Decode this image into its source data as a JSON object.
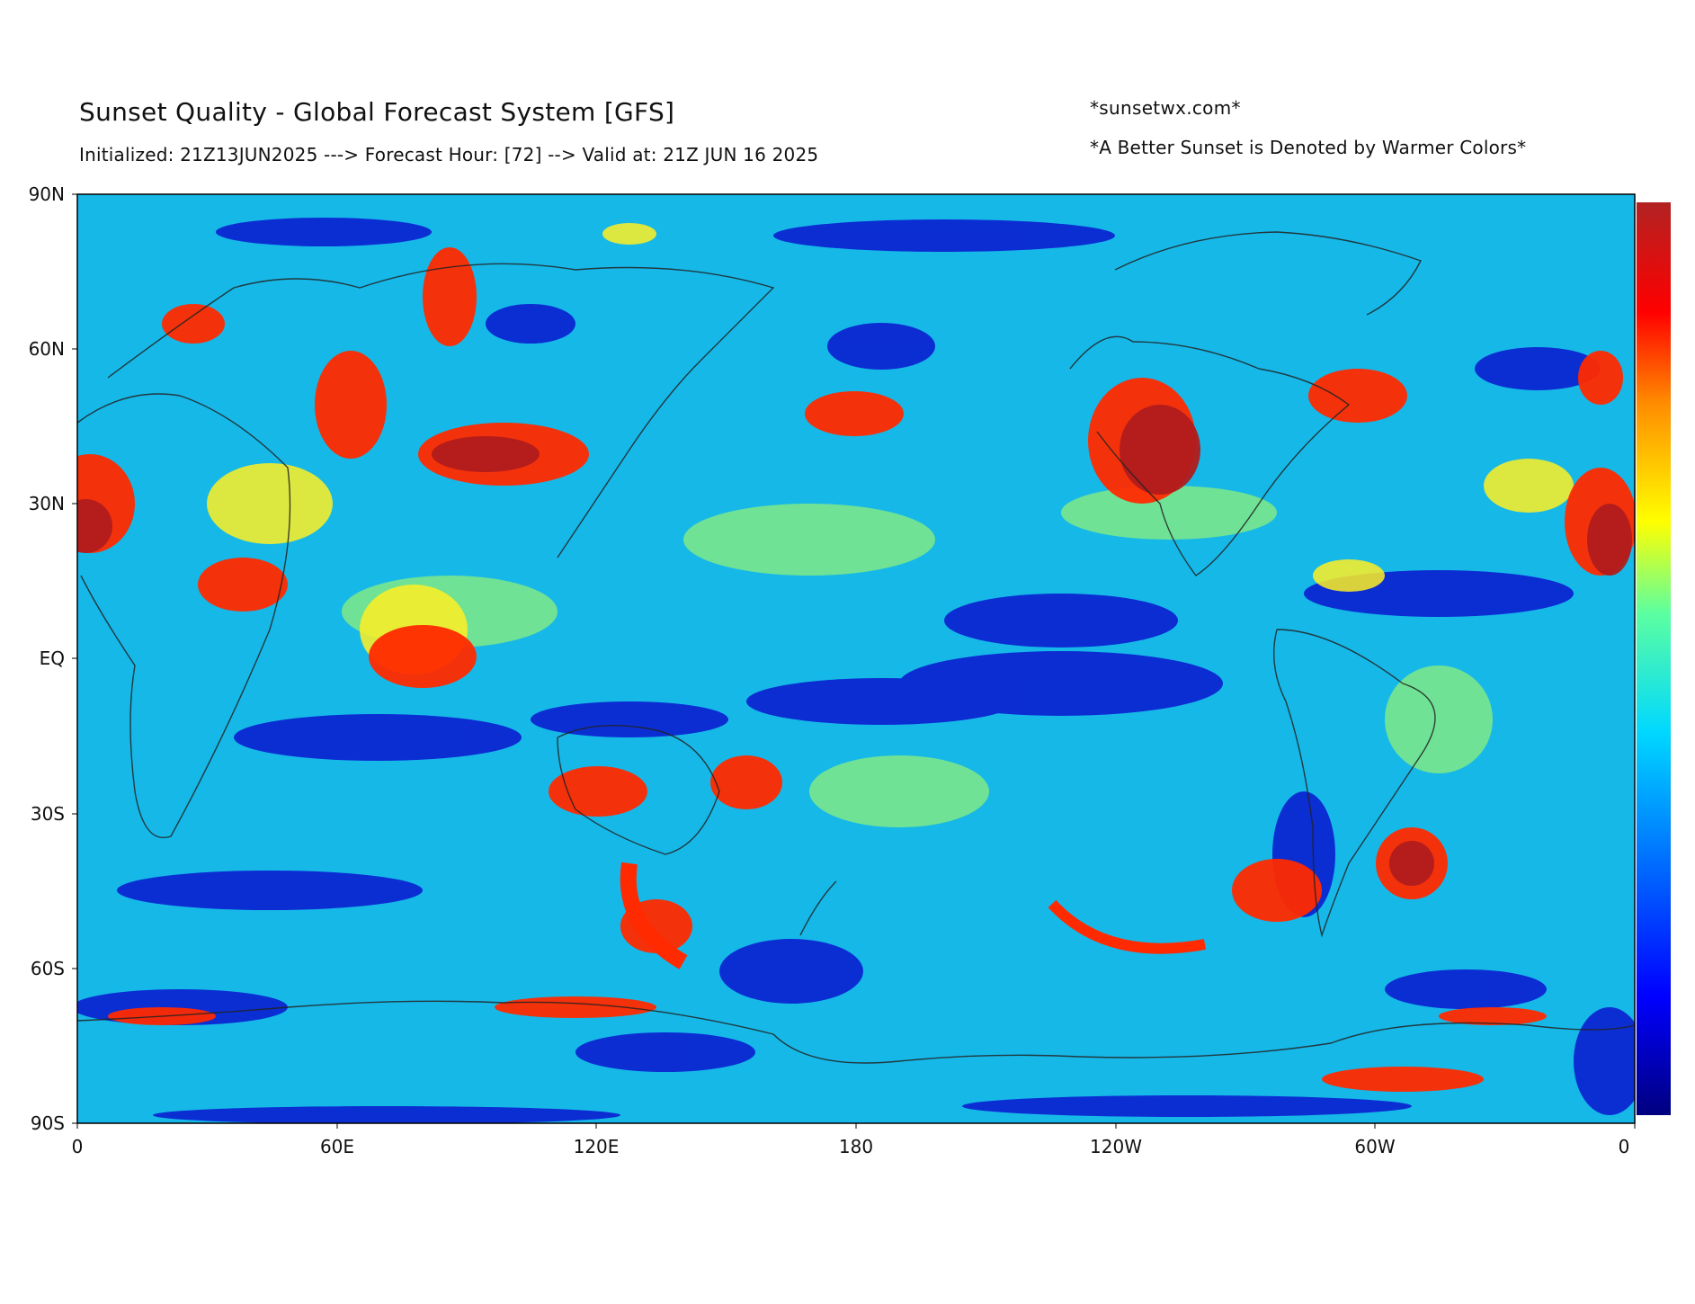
{
  "header": {
    "title": "Sunset Quality - Global Forecast System [GFS]",
    "subtitle": "Initialized: 21Z13JUN2025 ---> Forecast Hour: [72] --> Valid at: 21Z JUN 16 2025",
    "site": "*sunsetwx.com*",
    "note": "*A Better Sunset is Denoted by Warmer Colors*"
  },
  "map": {
    "lat_ticks": [
      "90N",
      "60N",
      "30N",
      "EQ",
      "30S",
      "60S",
      "90S"
    ],
    "lon_ticks": [
      "0",
      "60E",
      "120E",
      "180",
      "120W",
      "60W",
      "0"
    ],
    "colorbar": {
      "colors": [
        "#00007f",
        "#0000ff",
        "#007fff",
        "#00d8ff",
        "#5cffa0",
        "#ffff00",
        "#ff8c00",
        "#ff0000",
        "#b22222"
      ]
    }
  }
}
